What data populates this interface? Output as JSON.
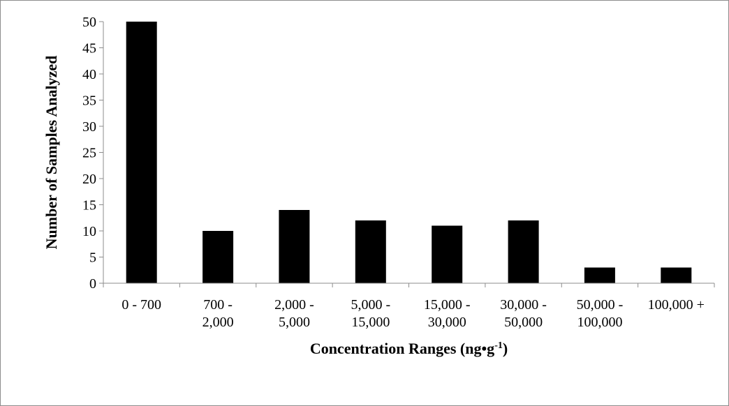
{
  "chart_data": {
    "type": "bar",
    "categories": [
      [
        "0 - 700"
      ],
      [
        "700 -",
        "2,000"
      ],
      [
        "2,000 -",
        "5,000"
      ],
      [
        "5,000 -",
        "15,000"
      ],
      [
        "15,000 -",
        "30,000"
      ],
      [
        "30,000 -",
        "50,000"
      ],
      [
        "50,000 -",
        "100,000"
      ],
      [
        "100,000 +"
      ]
    ],
    "values": [
      50,
      10,
      14,
      12,
      11,
      12,
      3,
      3
    ],
    "title": "",
    "xlabel": {
      "main": "Concentration Ranges (ng•g",
      "sup": "-1",
      "end": ")"
    },
    "ylabel": "Number of Samples Analyzed",
    "ylim": [
      0,
      50
    ],
    "yticks": [
      0,
      5,
      10,
      15,
      20,
      25,
      30,
      35,
      40,
      45,
      50
    ],
    "grid": false,
    "legend": "none",
    "bar_color": "#000000",
    "axis_color": "#8c8c8c"
  }
}
